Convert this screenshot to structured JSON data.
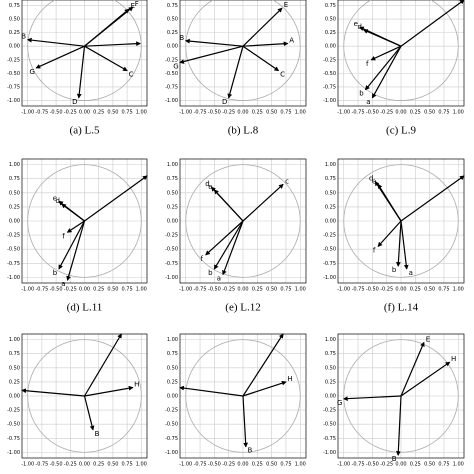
{
  "chart_data": [
    {
      "type": "biplot",
      "caption": "(a) L.5",
      "grid": true,
      "circle_radius": 1,
      "circle_color": "#aaaaaa",
      "color": "#000000",
      "xlim": [
        -1.1,
        1.1
      ],
      "ylim": [
        -1.1,
        0.85
      ],
      "xticks": [
        {
          "value": -1,
          "label": "-1.00"
        },
        {
          "value": -0.75,
          "label": "-0.75"
        },
        {
          "value": -0.5,
          "label": "-0.50"
        },
        {
          "value": -0.25,
          "label": "-0.25"
        },
        {
          "value": 0,
          "label": "0.00"
        },
        {
          "value": 0.25,
          "label": "0.25"
        },
        {
          "value": 0.5,
          "label": "0.50"
        },
        {
          "value": 0.75,
          "label": "0.75"
        },
        {
          "value": 1,
          "label": "1.00"
        }
      ],
      "yticks": [
        {
          "value": -1,
          "label": "-1.00"
        },
        {
          "value": -0.75,
          "label": "-0.75"
        },
        {
          "value": -0.5,
          "label": "-0.50"
        },
        {
          "value": -0.25,
          "label": "-0.25"
        },
        {
          "value": 0,
          "label": "0.00"
        },
        {
          "value": 0.25,
          "label": "0.25"
        },
        {
          "value": 0.5,
          "label": "0.50"
        },
        {
          "value": 0.75,
          "label": "0.75"
        }
      ],
      "labels": [
        "B",
        "F",
        "E",
        null,
        "C",
        "D",
        "G"
      ],
      "x": [
        -1.0,
        0.85,
        0.78,
        0.98,
        0.75,
        -0.1,
        -0.85
      ],
      "y": [
        0.12,
        0.72,
        0.68,
        0.05,
        -0.45,
        -0.95,
        -0.4
      ]
    },
    {
      "type": "biplot",
      "caption": "(b) L.8",
      "grid": true,
      "circle_radius": 1,
      "circle_color": "#aaaaaa",
      "color": "#000000",
      "xlim": [
        -1.1,
        1.1
      ],
      "ylim": [
        -1.1,
        0.85
      ],
      "xticks": [
        {
          "value": -1,
          "label": "-1.00"
        },
        {
          "value": -0.75,
          "label": "-0.75"
        },
        {
          "value": -0.5,
          "label": "-0.50"
        },
        {
          "value": -0.25,
          "label": "-0.25"
        },
        {
          "value": 0,
          "label": "0.00"
        },
        {
          "value": 0.25,
          "label": "0.25"
        },
        {
          "value": 0.5,
          "label": "0.50"
        },
        {
          "value": 0.75,
          "label": "0.75"
        },
        {
          "value": 1,
          "label": "1.00"
        }
      ],
      "yticks": [
        {
          "value": -1,
          "label": "-1.00"
        },
        {
          "value": -0.75,
          "label": "-0.75"
        },
        {
          "value": -0.5,
          "label": "-0.50"
        },
        {
          "value": -0.25,
          "label": "-0.25"
        },
        {
          "value": 0,
          "label": "0.00"
        },
        {
          "value": 0.25,
          "label": "0.25"
        },
        {
          "value": 0.5,
          "label": "0.50"
        },
        {
          "value": 0.75,
          "label": "0.75"
        }
      ],
      "labels": [
        "B",
        "G",
        "E",
        "A",
        "C",
        "D"
      ],
      "x": [
        -1.0,
        -1.1,
        0.68,
        0.78,
        0.62,
        -0.25
      ],
      "y": [
        0.1,
        -0.3,
        0.7,
        0.05,
        -0.45,
        -0.95
      ]
    },
    {
      "type": "biplot",
      "caption": "(c) L.9",
      "grid": true,
      "circle_radius": 1,
      "circle_color": "#aaaaaa",
      "color": "#000000",
      "xlim": [
        -1.1,
        1.1
      ],
      "ylim": [
        -1.1,
        0.85
      ],
      "xticks": [
        {
          "value": -1,
          "label": "-1.00"
        },
        {
          "value": -0.75,
          "label": "-0.75"
        },
        {
          "value": -0.5,
          "label": "-0.50"
        },
        {
          "value": -0.25,
          "label": "-0.25"
        },
        {
          "value": 0,
          "label": "0.00"
        },
        {
          "value": 0.25,
          "label": "0.25"
        },
        {
          "value": 0.5,
          "label": "0.50"
        },
        {
          "value": 0.75,
          "label": "0.75"
        },
        {
          "value": 1,
          "label": "1.00"
        }
      ],
      "yticks": [
        {
          "value": -1,
          "label": "-1.00"
        },
        {
          "value": -0.75,
          "label": "-0.75"
        },
        {
          "value": -0.5,
          "label": "-0.50"
        },
        {
          "value": -0.25,
          "label": "-0.25"
        },
        {
          "value": 0,
          "label": "0.00"
        },
        {
          "value": 0.25,
          "label": "0.25"
        },
        {
          "value": 0.5,
          "label": "0.50"
        },
        {
          "value": 0.75,
          "label": "0.75"
        }
      ],
      "labels": [
        "e",
        "d",
        "f",
        "b",
        "a",
        null
      ],
      "x": [
        -0.72,
        -0.65,
        -0.52,
        -0.62,
        -0.5,
        1.1
      ],
      "y": [
        0.35,
        0.3,
        -0.25,
        -0.8,
        -0.95,
        0.85
      ]
    },
    {
      "type": "biplot",
      "caption": "(d) L.11",
      "grid": true,
      "circle_radius": 1,
      "circle_color": "#aaaaaa",
      "color": "#000000",
      "xlim": [
        -1.1,
        1.1
      ],
      "ylim": [
        -1.1,
        1.1
      ],
      "xticks": [
        {
          "value": -1,
          "label": "-1.00"
        },
        {
          "value": -0.75,
          "label": "-0.75"
        },
        {
          "value": -0.5,
          "label": "-0.50"
        },
        {
          "value": -0.25,
          "label": "-0.25"
        },
        {
          "value": 0,
          "label": "0.00"
        },
        {
          "value": 0.25,
          "label": "0.25"
        },
        {
          "value": 0.5,
          "label": "0.50"
        },
        {
          "value": 0.75,
          "label": "0.75"
        },
        {
          "value": 1,
          "label": "1.00"
        }
      ],
      "yticks": [
        {
          "value": -1,
          "label": "-1.00"
        },
        {
          "value": -0.75,
          "label": "-0.75"
        },
        {
          "value": -0.5,
          "label": "-0.50"
        },
        {
          "value": -0.25,
          "label": "-0.25"
        },
        {
          "value": 0,
          "label": "0.00"
        },
        {
          "value": 0.25,
          "label": "0.25"
        },
        {
          "value": 0.5,
          "label": "0.50"
        },
        {
          "value": 0.75,
          "label": "0.75"
        },
        {
          "value": 1,
          "label": "1.00"
        }
      ],
      "labels": [
        "e",
        "d",
        "f",
        "b",
        "a",
        null
      ],
      "x": [
        -0.45,
        -0.4,
        -0.3,
        -0.45,
        -0.3,
        1.1
      ],
      "y": [
        0.35,
        0.3,
        -0.2,
        -0.85,
        -1.05,
        0.8
      ]
    },
    {
      "type": "biplot",
      "caption": "(e) L.12",
      "grid": true,
      "circle_radius": 1,
      "circle_color": "#aaaaaa",
      "color": "#000000",
      "xlim": [
        -1.1,
        1.1
      ],
      "ylim": [
        -1.1,
        1.1
      ],
      "xticks": [
        {
          "value": -1,
          "label": "-1.00"
        },
        {
          "value": -0.75,
          "label": "-0.75"
        },
        {
          "value": -0.5,
          "label": "-0.50"
        },
        {
          "value": -0.25,
          "label": "-0.25"
        },
        {
          "value": 0,
          "label": "0.00"
        },
        {
          "value": 0.25,
          "label": "0.25"
        },
        {
          "value": 0.5,
          "label": "0.50"
        },
        {
          "value": 0.75,
          "label": "0.75"
        },
        {
          "value": 1,
          "label": "1.00"
        }
      ],
      "yticks": [
        {
          "value": -1,
          "label": "-1.00"
        },
        {
          "value": -0.75,
          "label": "-0.75"
        },
        {
          "value": -0.5,
          "label": "-0.50"
        },
        {
          "value": -0.25,
          "label": "-0.25"
        },
        {
          "value": 0,
          "label": "0.00"
        },
        {
          "value": 0.25,
          "label": "0.25"
        },
        {
          "value": 0.5,
          "label": "0.50"
        },
        {
          "value": 0.75,
          "label": "0.75"
        },
        {
          "value": 1,
          "label": "1.00"
        }
      ],
      "labels": [
        "d",
        "e",
        "c",
        "f",
        "b",
        "a"
      ],
      "x": [
        -0.55,
        -0.5,
        0.7,
        -0.65,
        -0.5,
        -0.35
      ],
      "y": [
        0.6,
        0.55,
        0.65,
        -0.6,
        -0.85,
        -0.95
      ]
    },
    {
      "type": "biplot",
      "caption": "(f) L.14",
      "grid": true,
      "circle_radius": 1,
      "circle_color": "#aaaaaa",
      "color": "#000000",
      "xlim": [
        -1.1,
        1.1
      ],
      "ylim": [
        -1.1,
        1.1
      ],
      "xticks": [
        {
          "value": -1,
          "label": "-1.00"
        },
        {
          "value": -0.75,
          "label": "-0.75"
        },
        {
          "value": -0.5,
          "label": "-0.50"
        },
        {
          "value": -0.25,
          "label": "-0.25"
        },
        {
          "value": 0,
          "label": "0.00"
        },
        {
          "value": 0.25,
          "label": "0.25"
        },
        {
          "value": 0.5,
          "label": "0.50"
        },
        {
          "value": 0.75,
          "label": "0.75"
        },
        {
          "value": 1,
          "label": "1.00"
        }
      ],
      "yticks": [
        {
          "value": -1,
          "label": "-1.00"
        },
        {
          "value": -0.75,
          "label": "-0.75"
        },
        {
          "value": -0.5,
          "label": "-0.50"
        },
        {
          "value": -0.25,
          "label": "-0.25"
        },
        {
          "value": 0,
          "label": "0.00"
        },
        {
          "value": 0.25,
          "label": "0.25"
        },
        {
          "value": 0.5,
          "label": "0.50"
        },
        {
          "value": 0.75,
          "label": "0.75"
        },
        {
          "value": 1,
          "label": "1.00"
        }
      ],
      "labels": [
        "d",
        "e",
        "f",
        "b",
        "a",
        null
      ],
      "x": [
        -0.45,
        -0.4,
        -0.4,
        -0.05,
        0.1,
        1.1
      ],
      "y": [
        0.7,
        0.65,
        -0.45,
        -0.8,
        -0.85,
        0.8
      ]
    },
    {
      "type": "biplot",
      "grid": true,
      "circle_radius": 1,
      "circle_color": "#aaaaaa",
      "color": "#000000",
      "xlim": [
        -1.1,
        1.1
      ],
      "ylim": [
        -1.1,
        1.1
      ],
      "xticks": [
        {
          "value": -1,
          "label": "-1.00"
        },
        {
          "value": -0.75,
          "label": "-0.75"
        },
        {
          "value": -0.5,
          "label": "-0.50"
        },
        {
          "value": -0.25,
          "label": "-0.25"
        },
        {
          "value": 0,
          "label": "0.00"
        },
        {
          "value": 0.25,
          "label": "0.25"
        },
        {
          "value": 0.5,
          "label": "0.50"
        },
        {
          "value": 0.75,
          "label": "0.75"
        },
        {
          "value": 1,
          "label": "1.00"
        }
      ],
      "yticks": [
        {
          "value": -1,
          "label": "-1.00"
        },
        {
          "value": -0.75,
          "label": "-0.75"
        },
        {
          "value": -0.5,
          "label": "-0.50"
        },
        {
          "value": -0.25,
          "label": "-0.25"
        },
        {
          "value": 0,
          "label": "0.00"
        },
        {
          "value": 0.25,
          "label": "0.25"
        },
        {
          "value": 0.5,
          "label": "0.50"
        },
        {
          "value": 0.75,
          "label": "0.75"
        },
        {
          "value": 1,
          "label": "1.00"
        }
      ],
      "labels": [
        "H",
        null,
        null,
        "B"
      ],
      "x": [
        0.85,
        0.65,
        -1.1,
        0.15
      ],
      "y": [
        0.15,
        1.1,
        0.1,
        -0.6
      ]
    },
    {
      "type": "biplot",
      "grid": true,
      "circle_radius": 1,
      "circle_color": "#aaaaaa",
      "color": "#000000",
      "xlim": [
        -1.1,
        1.1
      ],
      "ylim": [
        -1.1,
        1.1
      ],
      "xticks": [
        {
          "value": -1,
          "label": "-1.00"
        },
        {
          "value": -0.75,
          "label": "-0.75"
        },
        {
          "value": -0.5,
          "label": "-0.50"
        },
        {
          "value": -0.25,
          "label": "-0.25"
        },
        {
          "value": 0,
          "label": "0.00"
        },
        {
          "value": 0.25,
          "label": "0.25"
        },
        {
          "value": 0.5,
          "label": "0.50"
        },
        {
          "value": 0.75,
          "label": "0.75"
        },
        {
          "value": 1,
          "label": "1.00"
        }
      ],
      "yticks": [
        {
          "value": -1,
          "label": "-1.00"
        },
        {
          "value": -0.75,
          "label": "-0.75"
        },
        {
          "value": -0.5,
          "label": "-0.50"
        },
        {
          "value": -0.25,
          "label": "-0.25"
        },
        {
          "value": 0,
          "label": "0.00"
        },
        {
          "value": 0.25,
          "label": "0.25"
        },
        {
          "value": 0.5,
          "label": "0.50"
        },
        {
          "value": 0.75,
          "label": "0.75"
        },
        {
          "value": 1,
          "label": "1.00"
        }
      ],
      "labels": [
        "H",
        null,
        null,
        "B"
      ],
      "x": [
        0.75,
        0.7,
        -1.1,
        0.05
      ],
      "y": [
        0.25,
        1.1,
        0.15,
        -0.9
      ]
    },
    {
      "type": "biplot",
      "grid": true,
      "circle_radius": 1,
      "circle_color": "#aaaaaa",
      "color": "#000000",
      "xlim": [
        -1.1,
        1.1
      ],
      "ylim": [
        -1.1,
        1.1
      ],
      "xticks": [
        {
          "value": -1,
          "label": "-1.00"
        },
        {
          "value": -0.75,
          "label": "-0.75"
        },
        {
          "value": -0.5,
          "label": "-0.50"
        },
        {
          "value": -0.25,
          "label": "-0.25"
        },
        {
          "value": 0,
          "label": "0.00"
        },
        {
          "value": 0.25,
          "label": "0.25"
        },
        {
          "value": 0.5,
          "label": "0.50"
        },
        {
          "value": 0.75,
          "label": "0.75"
        },
        {
          "value": 1,
          "label": "1.00"
        }
      ],
      "yticks": [
        {
          "value": -1,
          "label": "-1.00"
        },
        {
          "value": -0.75,
          "label": "-0.75"
        },
        {
          "value": -0.5,
          "label": "-0.50"
        },
        {
          "value": -0.25,
          "label": "-0.25"
        },
        {
          "value": 0,
          "label": "0.00"
        },
        {
          "value": 0.25,
          "label": "0.25"
        },
        {
          "value": 0.5,
          "label": "0.50"
        },
        {
          "value": 0.75,
          "label": "0.75"
        },
        {
          "value": 1,
          "label": "1.00"
        }
      ],
      "labels": [
        "E",
        "H",
        "G",
        "B"
      ],
      "x": [
        0.4,
        0.85,
        -1.0,
        -0.05
      ],
      "y": [
        0.95,
        0.6,
        -0.05,
        -1.05
      ]
    }
  ]
}
